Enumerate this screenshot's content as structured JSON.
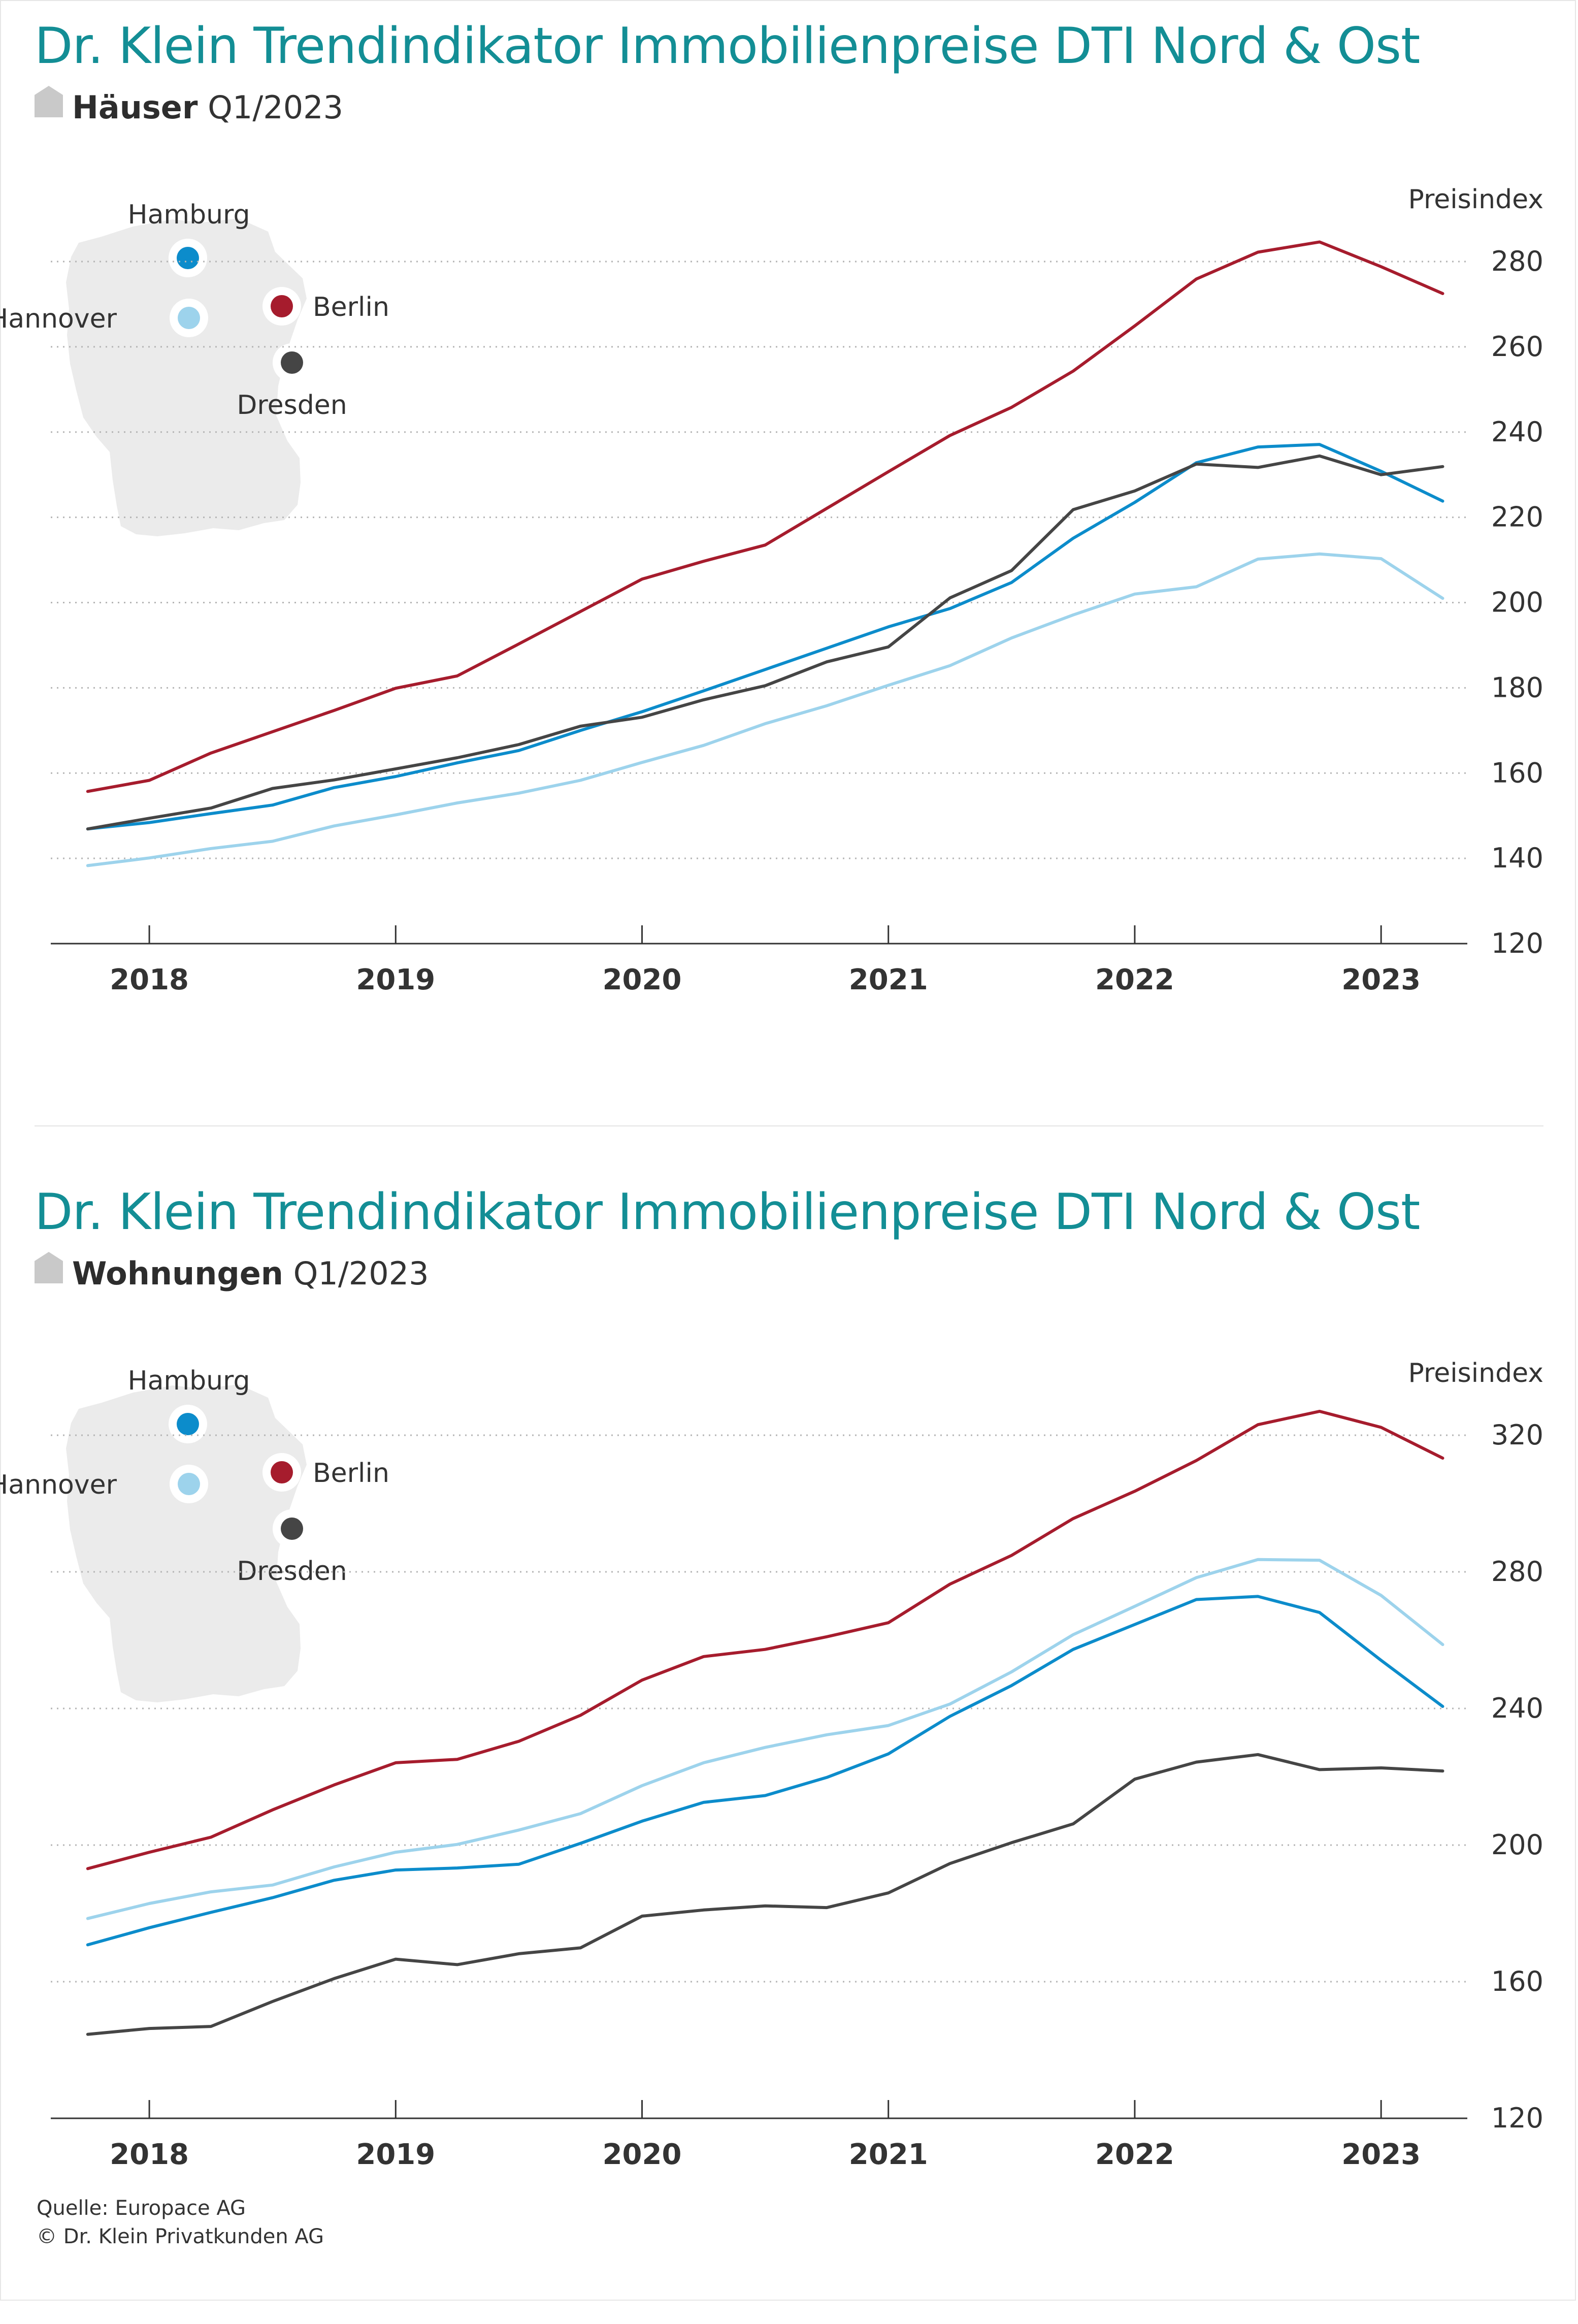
{
  "colors": {
    "hamburg": "#0c8ccb",
    "hannover": "#9dd3ec",
    "berlin": "#a61c2d",
    "dresden": "#454545",
    "title": "#138e95",
    "grid": "#b5b5b5"
  },
  "charts": [
    {
      "title": "Dr. Klein Trendindikator Immobilienpreise DTI Nord & Ost",
      "subtitle_bold": "Häuser",
      "subtitle_period": "Q1/2023",
      "icon": "house-icon",
      "map_labels": {
        "hamburg": "Hamburg",
        "hannover": "Hannover",
        "berlin": "Berlin",
        "dresden": "Dresden"
      }
    },
    {
      "title": "Dr. Klein Trendindikator Immobilienpreise DTI Nord & Ost",
      "subtitle_bold": "Wohnungen",
      "subtitle_period": "Q1/2023",
      "icon": "house-icon",
      "map_labels": {
        "hamburg": "Hamburg",
        "hannover": "Hannover",
        "berlin": "Berlin",
        "dresden": "Dresden"
      }
    }
  ],
  "chart_data": [
    {
      "type": "line",
      "title": "Dr. Klein Trendindikator Immobilienpreise DTI Nord & Ost",
      "subtitle": "Häuser Q1/2023",
      "ylabel": "Preisindex",
      "ylim": [
        120,
        280
      ],
      "yticks": [
        120,
        140,
        160,
        180,
        200,
        220,
        240,
        260,
        280
      ],
      "xticks": [
        "2018",
        "2019",
        "2020",
        "2021",
        "2022",
        "2023"
      ],
      "xlim": [
        2017.6,
        2023.35
      ],
      "grid": true,
      "x": [
        2017.75,
        2018.0,
        2018.25,
        2018.5,
        2018.75,
        2019.0,
        2019.25,
        2019.5,
        2019.75,
        2020.0,
        2020.25,
        2020.5,
        2020.75,
        2021.0,
        2021.25,
        2021.5,
        2021.75,
        2022.0,
        2022.25,
        2022.5,
        2022.75,
        2023.0,
        2023.25
      ],
      "series": [
        {
          "name": "Berlin",
          "color": "#a61c2d",
          "values": [
            155.7,
            158.3,
            164.7,
            169.7,
            174.7,
            179.9,
            182.8,
            190.3,
            197.9,
            205.5,
            209.7,
            213.5,
            222.1,
            230.7,
            239.2,
            245.8,
            254.3,
            264.9,
            275.9,
            282.2,
            284.6,
            278.8,
            272.5
          ]
        },
        {
          "name": "Hamburg",
          "color": "#0c8ccb",
          "values": [
            146.9,
            148.4,
            150.5,
            152.5,
            156.6,
            159.2,
            162.4,
            165.3,
            170.0,
            174.4,
            179.3,
            184.3,
            189.3,
            194.3,
            198.6,
            204.7,
            215.1,
            223.5,
            232.8,
            236.5,
            237.1,
            230.8,
            223.8
          ]
        },
        {
          "name": "Dresden",
          "color": "#454545",
          "values": [
            146.9,
            149.4,
            151.8,
            156.4,
            158.4,
            161.0,
            163.6,
            166.7,
            171.0,
            173.1,
            177.2,
            180.5,
            186.1,
            189.6,
            201.1,
            207.5,
            221.8,
            226.2,
            232.5,
            231.7,
            234.4,
            230.0,
            231.9
          ]
        },
        {
          "name": "Hannover",
          "color": "#9dd3ec",
          "values": [
            138.3,
            140.1,
            142.3,
            144.0,
            147.6,
            150.2,
            153.0,
            155.3,
            158.3,
            162.5,
            166.5,
            171.6,
            175.8,
            180.6,
            185.2,
            191.7,
            197.1,
            202.0,
            203.7,
            210.2,
            211.4,
            210.3,
            201.0
          ]
        }
      ]
    },
    {
      "type": "line",
      "title": "Dr. Klein Trendindikator Immobilienpreise DTI Nord & Ost",
      "subtitle": "Wohnungen Q1/2023",
      "ylabel": "Preisindex",
      "ylim": [
        120,
        320
      ],
      "yticks": [
        120,
        160,
        200,
        240,
        280,
        320
      ],
      "xticks": [
        "2018",
        "2019",
        "2020",
        "2021",
        "2022",
        "2023"
      ],
      "xlim": [
        2017.6,
        2023.35
      ],
      "grid": true,
      "x": [
        2017.75,
        2018.0,
        2018.25,
        2018.5,
        2018.75,
        2019.0,
        2019.25,
        2019.5,
        2019.75,
        2020.0,
        2020.25,
        2020.5,
        2020.75,
        2021.0,
        2021.25,
        2021.5,
        2021.75,
        2022.0,
        2022.25,
        2022.5,
        2022.75,
        2023.0,
        2023.25
      ],
      "series": [
        {
          "name": "Berlin",
          "color": "#a61c2d",
          "values": [
            193.1,
            197.9,
            202.3,
            210.3,
            217.6,
            224.1,
            225.1,
            230.4,
            238.0,
            248.3,
            255.2,
            257.3,
            261.0,
            265.1,
            276.4,
            284.8,
            295.6,
            303.6,
            312.6,
            323.1,
            327.0,
            322.3,
            313.3
          ]
        },
        {
          "name": "Hannover",
          "color": "#9dd3ec",
          "values": [
            178.5,
            182.9,
            186.3,
            188.3,
            193.6,
            197.9,
            200.2,
            204.4,
            209.2,
            217.4,
            224.1,
            228.6,
            232.3,
            235.0,
            241.3,
            250.7,
            261.6,
            269.9,
            278.3,
            283.6,
            283.4,
            273.1,
            258.7
          ]
        },
        {
          "name": "Hamburg",
          "color": "#0c8ccb",
          "values": [
            170.8,
            175.8,
            180.3,
            184.6,
            189.7,
            192.7,
            193.3,
            194.4,
            200.5,
            207.0,
            212.5,
            214.5,
            219.8,
            226.7,
            237.7,
            246.7,
            257.3,
            264.6,
            271.9,
            272.8,
            268.1,
            254.1,
            240.6
          ]
        },
        {
          "name": "Dresden",
          "color": "#454545",
          "values": [
            144.6,
            146.3,
            146.9,
            154.2,
            160.9,
            166.6,
            165.0,
            168.2,
            169.9,
            179.2,
            181.0,
            182.2,
            181.7,
            186.0,
            194.6,
            200.7,
            206.2,
            219.3,
            224.3,
            226.5,
            222.1,
            222.6,
            221.7
          ]
        }
      ]
    }
  ],
  "source": {
    "line1": "Quelle: Europace AG",
    "line2": "© Dr. Klein Privatkunden AG"
  }
}
